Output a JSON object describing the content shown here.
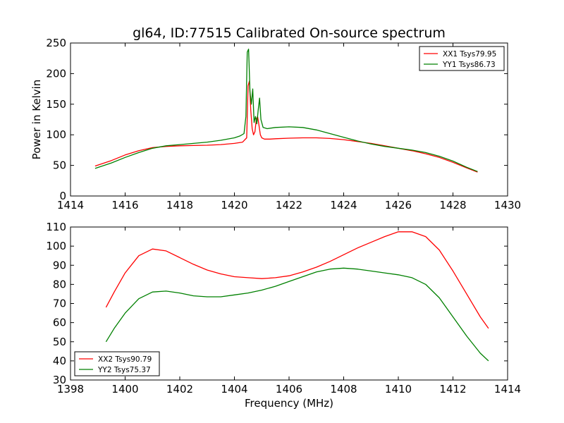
{
  "title": "gl64, ID:77515 Calibrated On-source spectrum",
  "chart_data": [
    {
      "type": "line",
      "ylabel": "Power in Kelvin",
      "xlabel": "",
      "xlim": [
        1414,
        1430
      ],
      "ylim": [
        0,
        250
      ],
      "xticks": [
        "1414",
        "1416",
        "1418",
        "1420",
        "1422",
        "1424",
        "1426",
        "1428",
        "1430"
      ],
      "yticks": [
        "0",
        "50",
        "100",
        "150",
        "200",
        "250"
      ],
      "legend_position": "top-right",
      "series": [
        {
          "name": "XX1 Tsys79.95",
          "color": "#ff0000",
          "x": [
            1414.9,
            1415.5,
            1416,
            1416.5,
            1417,
            1417.5,
            1418,
            1418.5,
            1419,
            1419.5,
            1420,
            1420.3,
            1420.45,
            1420.5,
            1420.55,
            1420.6,
            1420.65,
            1420.7,
            1420.75,
            1420.8,
            1420.85,
            1420.9,
            1420.95,
            1421.0,
            1421.1,
            1421.3,
            1421.5,
            1422,
            1422.5,
            1423,
            1423.5,
            1424,
            1424.5,
            1425,
            1425.5,
            1426,
            1426.5,
            1427,
            1427.5,
            1428,
            1428.5,
            1428.9
          ],
          "values": [
            49,
            58,
            67,
            74,
            79,
            81,
            82,
            82.5,
            83,
            84,
            86,
            88,
            95,
            180,
            188,
            140,
            110,
            100,
            105,
            125,
            130,
            115,
            100,
            95,
            93,
            93,
            93.5,
            94.5,
            95,
            95,
            94,
            92,
            89,
            86,
            82,
            78,
            74,
            69,
            63,
            55,
            46,
            39
          ]
        },
        {
          "name": "YY1 Tsys86.73",
          "color": "#008000",
          "x": [
            1414.9,
            1415.5,
            1416,
            1416.5,
            1417,
            1417.5,
            1418,
            1418.5,
            1419,
            1419.5,
            1420,
            1420.2,
            1420.35,
            1420.42,
            1420.47,
            1420.52,
            1420.57,
            1420.62,
            1420.67,
            1420.72,
            1420.77,
            1420.82,
            1420.87,
            1420.92,
            1420.97,
            1421.05,
            1421.2,
            1421.5,
            1422,
            1422.5,
            1423,
            1423.5,
            1424,
            1424.5,
            1425,
            1425.5,
            1426,
            1426.5,
            1427,
            1427.5,
            1428,
            1428.5,
            1428.9
          ],
          "values": [
            45,
            54,
            63,
            71,
            78,
            82,
            84,
            86,
            88,
            91,
            95,
            98,
            102,
            130,
            235,
            240,
            170,
            150,
            175,
            120,
            130,
            118,
            140,
            160,
            125,
            112,
            110,
            112,
            113,
            112,
            108,
            102,
            96,
            90,
            85,
            81,
            78,
            75,
            71,
            65,
            57,
            47,
            40
          ]
        }
      ]
    },
    {
      "type": "line",
      "xlabel": "Frequency (MHz)",
      "ylabel": "",
      "xlim": [
        1398,
        1414
      ],
      "ylim": [
        30,
        110
      ],
      "xticks": [
        "1398",
        "1400",
        "1402",
        "1404",
        "1406",
        "1408",
        "1410",
        "1412",
        "1414"
      ],
      "yticks": [
        "30",
        "40",
        "50",
        "60",
        "70",
        "80",
        "90",
        "100",
        "110"
      ],
      "legend_position": "bottom-left",
      "series": [
        {
          "name": "XX2 Tsys90.79",
          "color": "#ff0000",
          "x": [
            1399.3,
            1399.6,
            1400,
            1400.5,
            1401,
            1401.5,
            1402,
            1402.5,
            1403,
            1403.5,
            1404,
            1404.5,
            1405,
            1405.5,
            1406,
            1406.5,
            1407,
            1407.5,
            1408,
            1408.5,
            1409,
            1409.5,
            1410,
            1410.5,
            1411,
            1411.5,
            1412,
            1412.5,
            1413,
            1413.3
          ],
          "values": [
            68,
            76,
            86,
            95,
            98.5,
            97.5,
            94,
            90.5,
            87.5,
            85.5,
            84,
            83.5,
            83,
            83.5,
            84.5,
            86.5,
            89,
            92,
            95.5,
            99,
            102,
            105,
            107.5,
            107.5,
            105,
            98,
            87,
            75,
            63,
            57
          ]
        },
        {
          "name": "YY2 Tsys75.37",
          "color": "#008000",
          "x": [
            1399.3,
            1399.6,
            1400,
            1400.5,
            1401,
            1401.5,
            1402,
            1402.5,
            1403,
            1403.5,
            1404,
            1404.5,
            1405,
            1405.5,
            1406,
            1406.5,
            1407,
            1407.5,
            1408,
            1408.5,
            1409,
            1409.5,
            1410,
            1410.5,
            1411,
            1411.5,
            1412,
            1412.5,
            1413,
            1413.3
          ],
          "values": [
            50,
            57,
            65,
            72.5,
            76,
            76.5,
            75.5,
            74,
            73.5,
            73.5,
            74.5,
            75.5,
            77,
            79,
            81.5,
            84,
            86.5,
            88,
            88.5,
            88,
            87,
            86,
            85,
            83.5,
            80,
            73,
            63,
            53,
            44,
            40
          ]
        }
      ]
    }
  ]
}
